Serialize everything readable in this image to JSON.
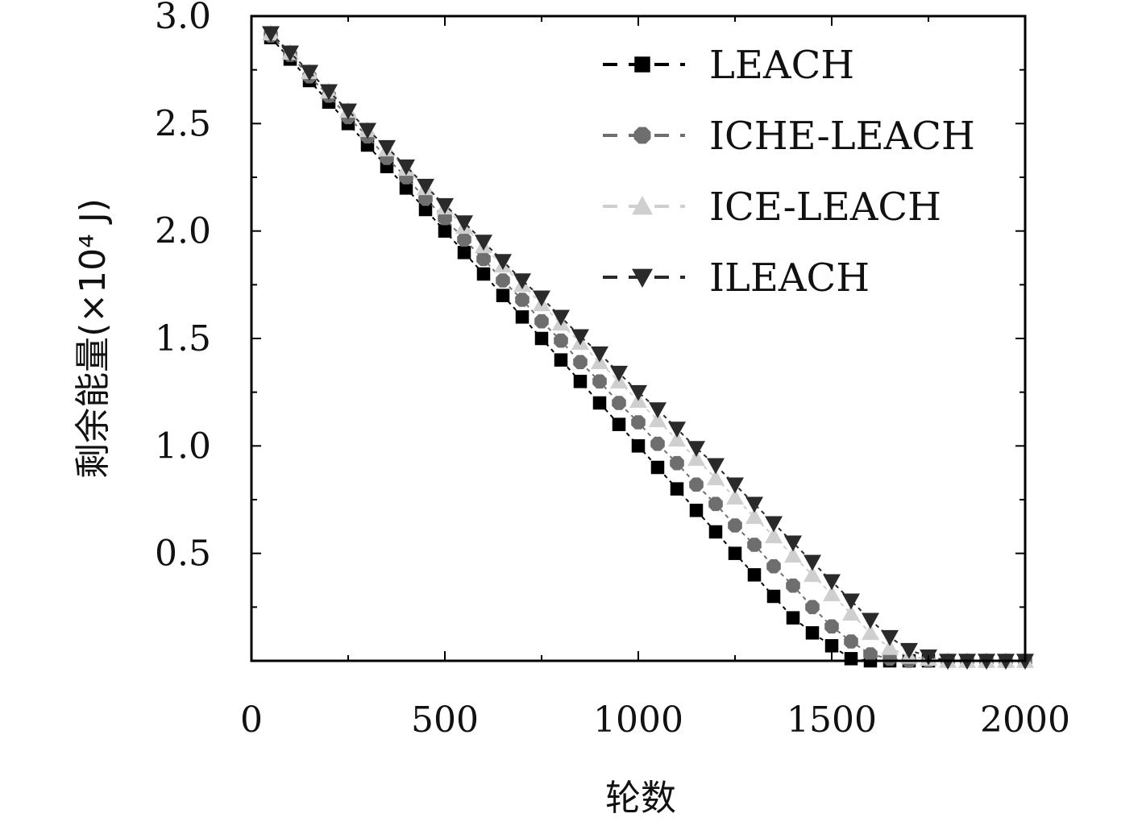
{
  "chart_data": {
    "type": "scatter",
    "xlabel": "轮数",
    "ylabel": "剩余能量(×10⁴ J)",
    "xlim": [
      0,
      2000
    ],
    "ylim": [
      0,
      3.0
    ],
    "xticks": [
      "0",
      "500",
      "1000",
      "1500",
      "2000"
    ],
    "yticks": [
      "0.5",
      "1.0",
      "1.5",
      "2.0",
      "2.5",
      "3.0"
    ],
    "grid": false,
    "legend_position": "top-right",
    "series": [
      {
        "name": "LEACH",
        "color": "#000000",
        "marker": "square",
        "line": "dashed",
        "x": [
          50,
          100,
          150,
          200,
          250,
          300,
          350,
          400,
          450,
          500,
          550,
          600,
          650,
          700,
          750,
          800,
          850,
          900,
          950,
          1000,
          1050,
          1100,
          1150,
          1200,
          1250,
          1300,
          1350,
          1400,
          1450,
          1500,
          1550,
          1600,
          1650,
          1700,
          1750,
          1800,
          1850,
          1900,
          1950,
          2000
        ],
        "values": [
          2.9,
          2.8,
          2.7,
          2.6,
          2.5,
          2.4,
          2.3,
          2.2,
          2.1,
          2.0,
          1.9,
          1.8,
          1.7,
          1.6,
          1.5,
          1.4,
          1.3,
          1.2,
          1.1,
          1.0,
          0.9,
          0.8,
          0.7,
          0.6,
          0.5,
          0.4,
          0.3,
          0.2,
          0.13,
          0.07,
          0.01,
          0.0,
          0.0,
          0.0,
          0.0,
          0.0,
          0.0,
          0.0,
          0.0,
          0.0
        ]
      },
      {
        "name": "ICHE-LEACH",
        "color": "#6e6e6e",
        "marker": "circle",
        "line": "dashed",
        "x": [
          50,
          100,
          150,
          200,
          250,
          300,
          350,
          400,
          450,
          500,
          550,
          600,
          650,
          700,
          750,
          800,
          850,
          900,
          950,
          1000,
          1050,
          1100,
          1150,
          1200,
          1250,
          1300,
          1350,
          1400,
          1450,
          1500,
          1550,
          1600,
          1650,
          1700,
          1750,
          1800,
          1850,
          1900,
          1950,
          2000
        ],
        "values": [
          2.91,
          2.82,
          2.72,
          2.63,
          2.53,
          2.44,
          2.34,
          2.25,
          2.15,
          2.06,
          1.96,
          1.87,
          1.77,
          1.68,
          1.58,
          1.49,
          1.39,
          1.3,
          1.2,
          1.11,
          1.01,
          0.92,
          0.82,
          0.73,
          0.63,
          0.54,
          0.44,
          0.35,
          0.25,
          0.16,
          0.09,
          0.03,
          0.01,
          0.0,
          0.0,
          0.0,
          0.0,
          0.0,
          0.0,
          0.0
        ]
      },
      {
        "name": "ICE-LEACH",
        "color": "#cfcfcf",
        "marker": "triangle-up",
        "line": "dashed",
        "x": [
          50,
          100,
          150,
          200,
          250,
          300,
          350,
          400,
          450,
          500,
          550,
          600,
          650,
          700,
          750,
          800,
          850,
          900,
          950,
          1000,
          1050,
          1100,
          1150,
          1200,
          1250,
          1300,
          1350,
          1400,
          1450,
          1500,
          1550,
          1600,
          1650,
          1700,
          1750,
          1800,
          1850,
          1900,
          1950,
          2000
        ],
        "values": [
          2.92,
          2.83,
          2.74,
          2.65,
          2.56,
          2.47,
          2.38,
          2.29,
          2.2,
          2.11,
          2.02,
          1.93,
          1.84,
          1.75,
          1.66,
          1.57,
          1.48,
          1.39,
          1.3,
          1.21,
          1.12,
          1.03,
          0.94,
          0.85,
          0.76,
          0.67,
          0.58,
          0.49,
          0.4,
          0.31,
          0.22,
          0.13,
          0.06,
          0.02,
          0.01,
          0.0,
          0.0,
          0.0,
          0.0,
          0.0
        ]
      },
      {
        "name": "ILEACH",
        "color": "#2a2a2a",
        "marker": "triangle-down",
        "line": "dashed",
        "x": [
          50,
          100,
          150,
          200,
          250,
          300,
          350,
          400,
          450,
          500,
          550,
          600,
          650,
          700,
          750,
          800,
          850,
          900,
          950,
          1000,
          1050,
          1100,
          1150,
          1200,
          1250,
          1300,
          1350,
          1400,
          1450,
          1500,
          1550,
          1600,
          1650,
          1700,
          1750,
          1800,
          1850,
          1900,
          1950,
          2000
        ],
        "values": [
          2.92,
          2.83,
          2.74,
          2.65,
          2.56,
          2.47,
          2.39,
          2.3,
          2.21,
          2.12,
          2.04,
          1.95,
          1.86,
          1.77,
          1.69,
          1.6,
          1.51,
          1.43,
          1.34,
          1.25,
          1.17,
          1.08,
          0.99,
          0.91,
          0.82,
          0.73,
          0.64,
          0.55,
          0.46,
          0.37,
          0.28,
          0.19,
          0.11,
          0.05,
          0.02,
          0.0,
          0.0,
          0.0,
          0.0,
          0.0
        ]
      }
    ]
  }
}
